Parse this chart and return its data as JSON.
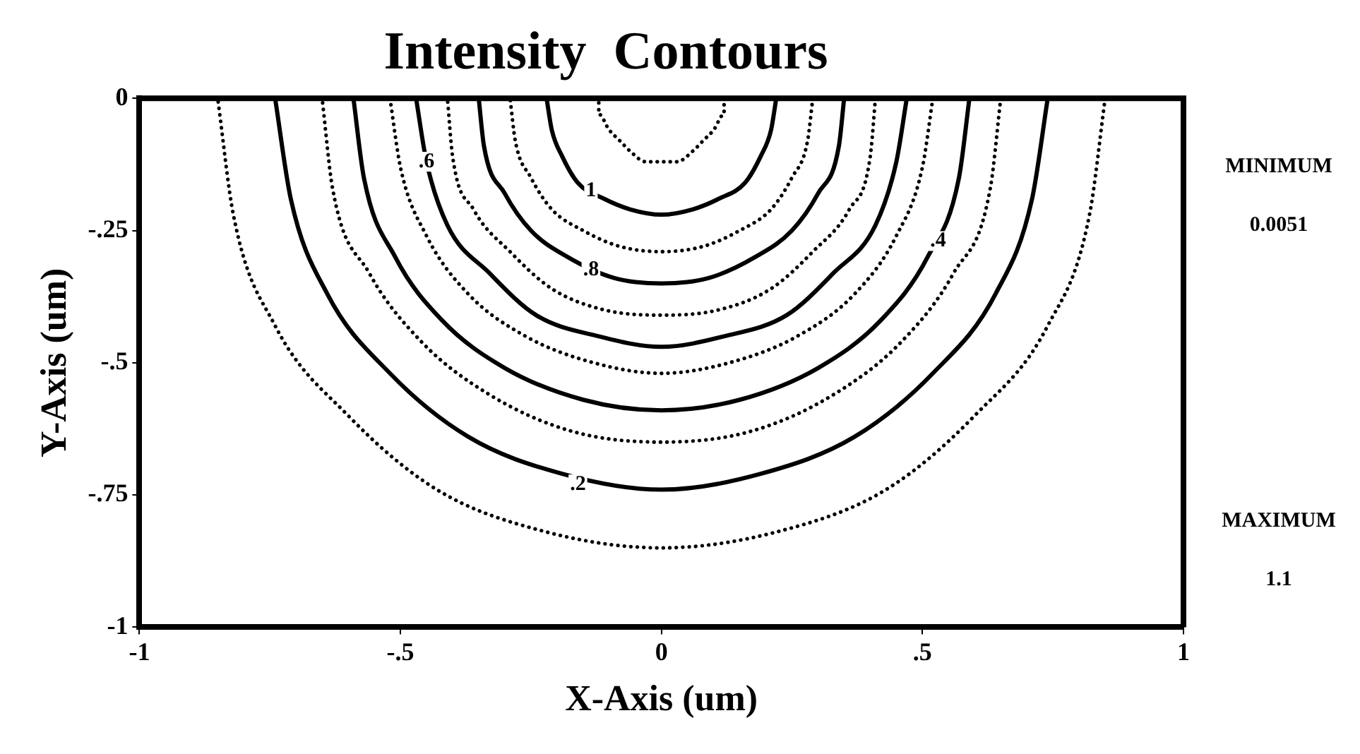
{
  "chart_data": {
    "type": "line",
    "title": "Intensity  Contours",
    "xlabel": "X-Axis (um)",
    "ylabel": "Y-Axis (um)",
    "xlim": [
      -1,
      1
    ],
    "xticks": [
      -1,
      {
        "value": -0.5,
        "label": "-.5"
      },
      0,
      {
        "value": 0.5,
        "label": ".5"
      },
      1
    ],
    "ylim": [
      -1,
      0
    ],
    "yticks": [
      0,
      {
        "value": -0.25,
        "label": "-.25"
      },
      {
        "value": -0.5,
        "label": "-.5"
      },
      {
        "value": -0.75,
        "label": "-.75"
      },
      -1
    ],
    "grid": false,
    "legend": false,
    "marker": "none",
    "series": [
      {
        "color": "#000000",
        "line_style": "dotted",
        "x": [
          0.12,
          0.12,
          0.1,
          0.08,
          0.06,
          0.03,
          0,
          -0.03,
          -0.06,
          -0.08,
          -0.1,
          -0.12,
          -0.12
        ],
        "values": [
          0,
          -0.03,
          -0.06,
          -0.08,
          -0.1,
          -0.12,
          -0.12,
          -0.12,
          -0.1,
          -0.08,
          -0.06,
          -0.03,
          0
        ]
      },
      {
        "color": "#000000",
        "line_style": "solid",
        "x": [
          0.22,
          0.21,
          0.19,
          0.16,
          0.11,
          0.06,
          0,
          -0.06,
          -0.11,
          -0.16,
          -0.19,
          -0.21,
          -0.22
        ],
        "values": [
          0,
          -0.06,
          -0.11,
          -0.16,
          -0.19,
          -0.21,
          -0.22,
          -0.21,
          -0.19,
          -0.16,
          -0.11,
          -0.06,
          0
        ]
      },
      {
        "color": "#000000",
        "line_style": "dotted",
        "x": [
          0.29,
          0.28,
          0.25,
          0.21,
          0.15,
          0.08,
          0,
          -0.08,
          -0.15,
          -0.21,
          -0.25,
          -0.28,
          -0.29
        ],
        "values": [
          0,
          -0.08,
          -0.15,
          -0.21,
          -0.25,
          -0.28,
          -0.29,
          -0.28,
          -0.25,
          -0.21,
          -0.15,
          -0.08,
          0
        ]
      },
      {
        "color": "#000000",
        "line_style": "solid",
        "x": [
          0.35,
          0.34,
          0.3,
          0.25,
          0.18,
          0.09,
          0,
          -0.09,
          -0.18,
          -0.25,
          -0.3,
          -0.34,
          -0.35
        ],
        "values": [
          0,
          -0.09,
          -0.18,
          -0.25,
          -0.3,
          -0.34,
          -0.35,
          -0.34,
          -0.3,
          -0.25,
          -0.18,
          -0.09,
          0
        ]
      },
      {
        "color": "#000000",
        "line_style": "dotted",
        "x": [
          0.41,
          0.4,
          0.36,
          0.29,
          0.21,
          0.11,
          0,
          -0.11,
          -0.21,
          -0.29,
          -0.36,
          -0.4,
          -0.41
        ],
        "values": [
          0,
          -0.11,
          -0.21,
          -0.29,
          -0.36,
          -0.4,
          -0.41,
          -0.4,
          -0.36,
          -0.29,
          -0.21,
          -0.11,
          0
        ]
      },
      {
        "color": "#000000",
        "line_style": "solid",
        "x": [
          0.47,
          0.45,
          0.41,
          0.33,
          0.24,
          0.12,
          0,
          -0.12,
          -0.24,
          -0.33,
          -0.41,
          -0.45,
          -0.47
        ],
        "values": [
          0,
          -0.12,
          -0.24,
          -0.33,
          -0.41,
          -0.45,
          -0.47,
          -0.45,
          -0.41,
          -0.33,
          -0.24,
          -0.12,
          0
        ]
      },
      {
        "color": "#000000",
        "line_style": "dotted",
        "x": [
          0.52,
          0.5,
          0.45,
          0.37,
          0.26,
          0.13,
          0,
          -0.13,
          -0.26,
          -0.37,
          -0.45,
          -0.5,
          -0.52
        ],
        "values": [
          0,
          -0.13,
          -0.26,
          -0.37,
          -0.45,
          -0.5,
          -0.52,
          -0.5,
          -0.45,
          -0.37,
          -0.26,
          -0.13,
          0
        ]
      },
      {
        "color": "#000000",
        "line_style": "solid",
        "x": [
          0.59,
          0.57,
          0.51,
          0.42,
          0.3,
          0.15,
          0,
          -0.15,
          -0.3,
          -0.42,
          -0.51,
          -0.57,
          -0.59
        ],
        "values": [
          0,
          -0.15,
          -0.3,
          -0.42,
          -0.51,
          -0.57,
          -0.59,
          -0.57,
          -0.51,
          -0.42,
          -0.3,
          -0.15,
          0
        ]
      },
      {
        "color": "#000000",
        "line_style": "dotted",
        "x": [
          0.65,
          0.63,
          0.56,
          0.46,
          0.33,
          0.17,
          0,
          -0.17,
          -0.33,
          -0.46,
          -0.56,
          -0.63,
          -0.65
        ],
        "values": [
          0,
          -0.17,
          -0.33,
          -0.46,
          -0.56,
          -0.63,
          -0.65,
          -0.63,
          -0.56,
          -0.46,
          -0.33,
          -0.17,
          0
        ]
      },
      {
        "color": "#000000",
        "line_style": "solid",
        "x": [
          0.74,
          0.71,
          0.64,
          0.52,
          0.37,
          0.19,
          0,
          -0.19,
          -0.37,
          -0.52,
          -0.64,
          -0.71,
          -0.74
        ],
        "values": [
          0,
          -0.19,
          -0.37,
          -0.52,
          -0.64,
          -0.71,
          -0.74,
          -0.71,
          -0.64,
          -0.52,
          -0.37,
          -0.19,
          0
        ]
      },
      {
        "color": "#000000",
        "line_style": "dotted",
        "x": [
          0.85,
          0.82,
          0.74,
          0.6,
          0.43,
          0.22,
          0,
          -0.22,
          -0.43,
          -0.6,
          -0.74,
          -0.82,
          -0.85
        ],
        "values": [
          0,
          -0.22,
          -0.43,
          -0.6,
          -0.74,
          -0.82,
          -0.85,
          -0.82,
          -0.74,
          -0.6,
          -0.43,
          -0.22,
          0
        ]
      }
    ],
    "annotations": [
      {
        "text": "1",
        "x": -0.135,
        "y": -0.175
      },
      {
        "text": ".8",
        "x": -0.135,
        "y": -0.325
      },
      {
        "text": ".6",
        "x": -0.45,
        "y": -0.12
      },
      {
        "text": ".4",
        "x": 0.53,
        "y": -0.27
      },
      {
        "text": ".2",
        "x": -0.16,
        "y": -0.73
      },
      "MINIMUM",
      "0.0051",
      "MAXIMUM",
      "1.1"
    ]
  }
}
